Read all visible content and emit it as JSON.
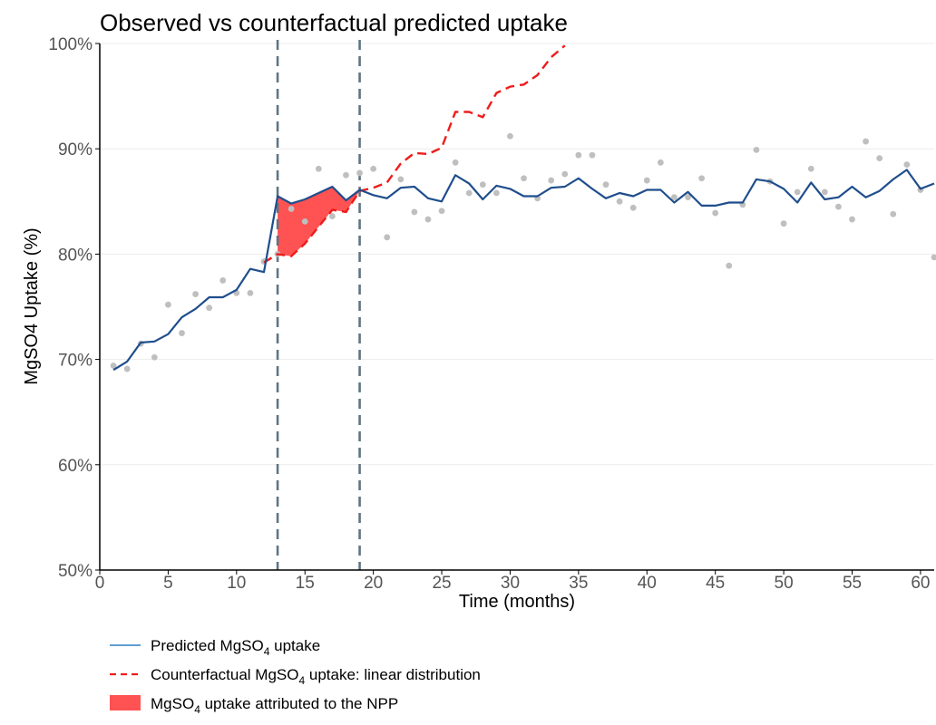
{
  "chart_data": {
    "type": "line",
    "title": "Observed vs counterfactual predicted uptake",
    "xlabel": "Time (months)",
    "ylabel": "MgSO4 Uptake (%)",
    "xlim": [
      0,
      61
    ],
    "ylim": [
      50,
      100
    ],
    "x_ticks": [
      0,
      5,
      10,
      15,
      20,
      25,
      30,
      35,
      40,
      45,
      50,
      55,
      60
    ],
    "y_ticks": [
      50,
      60,
      70,
      80,
      90,
      100
    ],
    "y_tick_suffix": "%",
    "grid": "horizontal",
    "vertical_lines": [
      13,
      19
    ],
    "series": [
      {
        "name": "Predicted MgSO4 uptake",
        "kind": "line",
        "color": "#1f4e8c",
        "x": [
          1,
          2,
          3,
          4,
          5,
          6,
          7,
          8,
          9,
          10,
          11,
          12,
          13,
          14,
          15,
          16,
          17,
          18,
          19,
          20,
          21,
          22,
          23,
          24,
          25,
          26,
          27,
          28,
          29,
          30,
          31,
          32,
          33,
          34,
          35,
          36,
          37,
          38,
          39,
          40,
          41,
          42,
          43,
          44,
          45,
          46,
          47,
          48,
          49,
          50,
          51,
          52,
          53,
          54,
          55,
          56,
          57,
          58,
          59,
          60,
          61
        ],
        "y": [
          69.0,
          69.8,
          71.6,
          71.7,
          72.4,
          74.0,
          74.8,
          75.9,
          75.9,
          76.6,
          78.6,
          78.3,
          85.5,
          84.8,
          85.2,
          85.8,
          86.4,
          85.1,
          86.1,
          85.6,
          85.3,
          86.3,
          86.4,
          85.3,
          85.0,
          87.5,
          86.7,
          85.2,
          86.5,
          86.2,
          85.5,
          85.5,
          86.3,
          86.4,
          87.2,
          86.2,
          85.3,
          85.8,
          85.5,
          86.1,
          86.1,
          84.9,
          85.9,
          84.6,
          84.6,
          84.9,
          84.9,
          87.1,
          86.9,
          86.2,
          84.9,
          86.8,
          85.2,
          85.4,
          86.4,
          85.4,
          86.0,
          87.1,
          88.0,
          86.2,
          86.7
        ]
      },
      {
        "name": "Counterfactual MgSO4 uptake: linear distribution",
        "kind": "dashed-line",
        "color": "#ee1c1c",
        "x": [
          12,
          13,
          14,
          15,
          16,
          17,
          18,
          19,
          20,
          21,
          22,
          23,
          24,
          25,
          26,
          27,
          28,
          29,
          30,
          31,
          32,
          33,
          34
        ],
        "y": [
          79.2,
          80.0,
          79.8,
          81.0,
          82.6,
          84.2,
          84.0,
          86.0,
          86.3,
          86.8,
          88.6,
          89.6,
          89.5,
          90.1,
          93.5,
          93.5,
          93.0,
          95.3,
          95.9,
          96.1,
          97.0,
          98.7,
          99.8
        ]
      },
      {
        "name": "MgSO4 uptake attributed to the NPP",
        "kind": "area",
        "color": "#ff5252",
        "x_range": [
          13,
          19
        ]
      },
      {
        "name": "Observed",
        "kind": "scatter",
        "color": "#bfbfbf",
        "x": [
          1,
          2,
          3,
          4,
          5,
          6,
          7,
          8,
          9,
          10,
          11,
          12,
          13,
          14,
          15,
          16,
          17,
          18,
          19,
          20,
          21,
          22,
          23,
          24,
          25,
          26,
          27,
          28,
          29,
          30,
          31,
          32,
          33,
          34,
          35,
          36,
          37,
          38,
          39,
          40,
          41,
          42,
          43,
          44,
          45,
          46,
          47,
          48,
          49,
          50,
          51,
          52,
          53,
          54,
          55,
          56,
          57,
          58,
          59,
          60,
          61
        ],
        "y": [
          69.4,
          69.1,
          71.5,
          70.2,
          75.2,
          72.5,
          76.2,
          74.9,
          77.5,
          76.3,
          76.3,
          79.3,
          80.0,
          84.3,
          83.1,
          88.1,
          83.6,
          87.5,
          87.7,
          88.1,
          81.6,
          87.1,
          84.0,
          83.3,
          84.1,
          88.7,
          85.8,
          86.6,
          85.8,
          91.2,
          87.2,
          85.3,
          87.0,
          87.6,
          89.4,
          89.4,
          86.6,
          85.0,
          84.4,
          87.0,
          88.7,
          85.4,
          85.4,
          87.2,
          83.9,
          78.9,
          84.7,
          89.9,
          86.9,
          82.9,
          85.9,
          88.1,
          85.9,
          84.5,
          83.3,
          90.7,
          89.1,
          83.8,
          88.5,
          86.1,
          79.7
        ]
      }
    ],
    "legend": {
      "position": "bottom-left",
      "items": [
        {
          "pre": "Predicted MgSO",
          "sub": "4",
          "post": " uptake"
        },
        {
          "pre": "Counterfactual MgSO",
          "sub": "4",
          "post": " uptake: linear distribution"
        },
        {
          "pre": "MgSO",
          "sub": "4",
          "post": " uptake attributed to the NPP"
        }
      ]
    }
  }
}
